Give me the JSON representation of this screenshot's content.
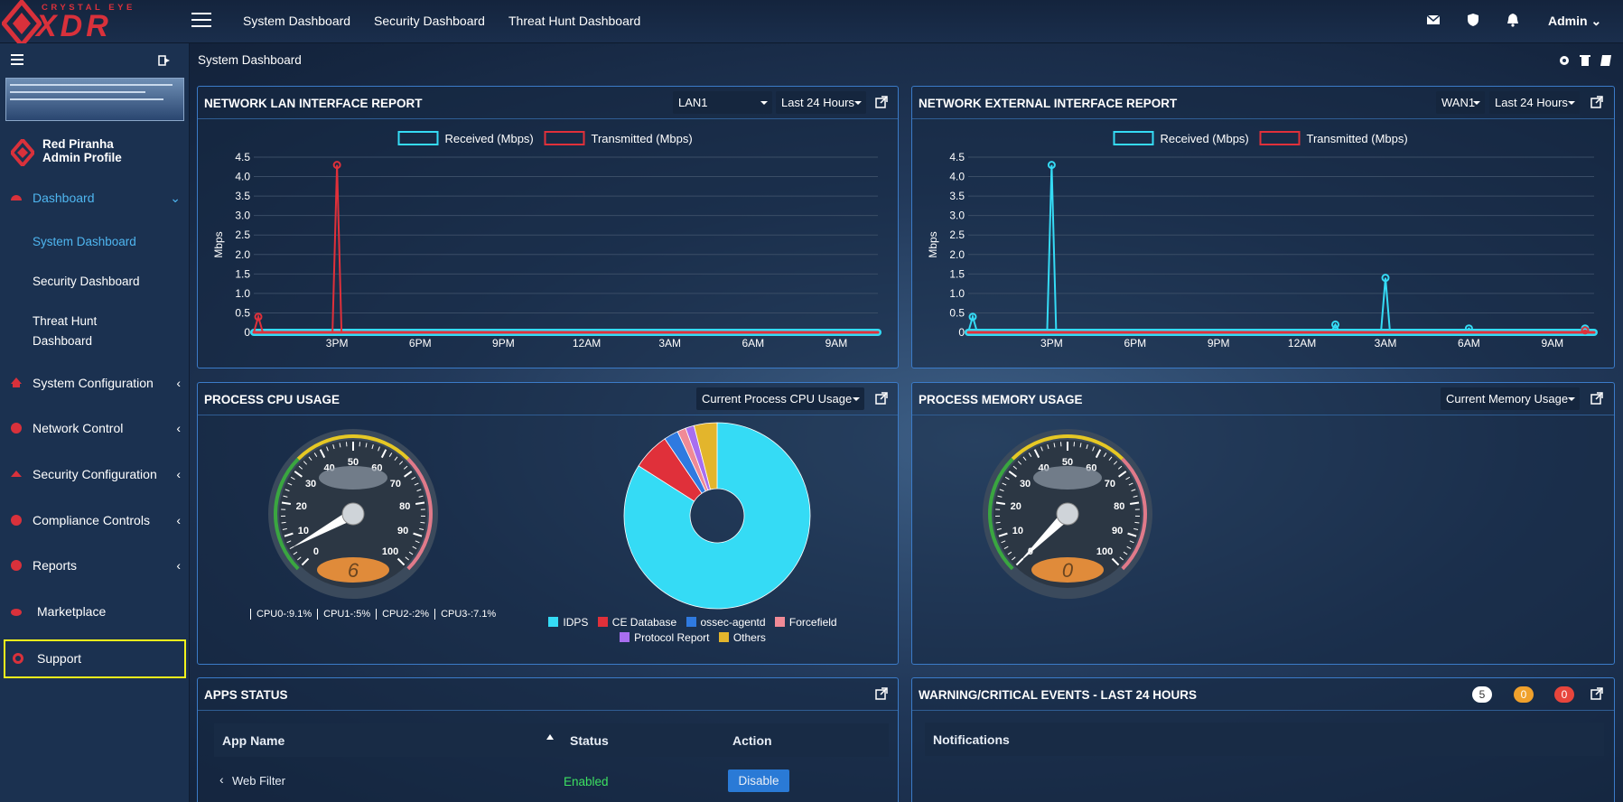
{
  "logo": {
    "top": "CRYSTAL EYE",
    "main": "XDR"
  },
  "topnav": {
    "items": [
      "System Dashboard",
      "Security Dashboard",
      "Threat Hunt Dashboard"
    ],
    "admin": "Admin"
  },
  "sidebar": {
    "profile_name": "Red Piranha",
    "profile_sub": "Admin Profile",
    "dashboard": "Dashboard",
    "sub": [
      "System Dashboard",
      "Security Dashboard",
      "Threat Hunt",
      "Dashboard"
    ],
    "items": [
      "System Configuration",
      "Network Control",
      "Security Configuration",
      "Compliance Controls",
      "Reports",
      "Marketplace",
      "Support"
    ]
  },
  "breadcrumb": "System Dashboard",
  "lan": {
    "title": "NETWORK LAN INTERFACE REPORT",
    "interface": "LAN1",
    "range": "Last 24 Hours",
    "legend": [
      "Received (Mbps)",
      "Transmitted (Mbps)"
    ],
    "ylabel": "Mbps"
  },
  "wan": {
    "title": "NETWORK EXTERNAL INTERFACE REPORT",
    "interface": "WAN1",
    "range": "Last 24 Hours",
    "legend": [
      "Received (Mbps)",
      "Transmitted (Mbps)"
    ],
    "ylabel": "Mbps"
  },
  "cpu": {
    "title": "PROCESS CPU USAGE",
    "select": "Current Process CPU Usage",
    "gauge_value": "6",
    "gauge_ticks": [
      "0",
      "10",
      "20",
      "30",
      "40",
      "50",
      "60",
      "70",
      "80",
      "90",
      "100"
    ],
    "cores": [
      "CPU0-:9.1%",
      "CPU1-:5%",
      "CPU2-:2%",
      "CPU3-:7.1%"
    ],
    "pie_legend": [
      "IDPS",
      "CE Database",
      "ossec-agentd",
      "Forcefield",
      "Protocol Report",
      "Others"
    ]
  },
  "mem": {
    "title": "PROCESS MEMORY USAGE",
    "select": "Current Memory Usage",
    "gauge_value": "0"
  },
  "apps": {
    "title": "APPS STATUS",
    "headers": [
      "App Name",
      "Status",
      "Action"
    ],
    "row_name": "Web Filter",
    "row_status": "Enabled",
    "row_action": "Disable"
  },
  "events": {
    "title": "WARNING/CRITICAL EVENTS - LAST 24 HOURS",
    "badges": [
      "5",
      "0",
      "0"
    ],
    "notifications": "Notifications"
  },
  "colors": {
    "received": "#35dbf5",
    "transmitted": "#e0303a",
    "accent": "#3b7bc8",
    "highlight": "#f2f21c"
  },
  "chart_data": [
    {
      "type": "line",
      "title": "NETWORK LAN INTERFACE REPORT",
      "ylabel": "Mbps",
      "ylim": [
        0,
        4.5
      ],
      "yticks": [
        "4.5",
        "4.0",
        "3.5",
        "3.0",
        "2.5",
        "2.0",
        "1.5",
        "1.0",
        "0.5",
        "0"
      ],
      "xticks": [
        "3PM",
        "6PM",
        "9PM",
        "12AM",
        "3AM",
        "6AM",
        "9AM"
      ],
      "series": [
        {
          "name": "Received (Mbps)",
          "values": [
            0,
            0,
            0,
            0,
            0,
            0,
            0,
            0
          ]
        },
        {
          "name": "Transmitted (Mbps)",
          "values": [
            0.4,
            0,
            4.3,
            0,
            0,
            0,
            0,
            0
          ]
        }
      ]
    },
    {
      "type": "line",
      "title": "NETWORK EXTERNAL INTERFACE REPORT",
      "ylabel": "Mbps",
      "ylim": [
        0,
        4.5
      ],
      "yticks": [
        "4.5",
        "4.0",
        "3.5",
        "3.0",
        "2.5",
        "2.0",
        "1.5",
        "1.0",
        "0.5",
        "0"
      ],
      "xticks": [
        "3PM",
        "6PM",
        "9PM",
        "12AM",
        "3AM",
        "6AM",
        "9AM"
      ],
      "series": [
        {
          "name": "Received (Mbps)",
          "values": [
            0.4,
            0,
            4.3,
            0,
            0.2,
            1.4,
            0.1,
            0.1
          ]
        },
        {
          "name": "Transmitted (Mbps)",
          "values": [
            0,
            0,
            0,
            0,
            0,
            0,
            0,
            0.05
          ]
        }
      ]
    },
    {
      "type": "pie",
      "labels": [
        "IDPS",
        "CE Database",
        "ossec-agentd",
        "Forcefield",
        "Protocol Report",
        "Others"
      ],
      "values": [
        84,
        6.5,
        2.5,
        1.5,
        1.5,
        4
      ]
    }
  ]
}
